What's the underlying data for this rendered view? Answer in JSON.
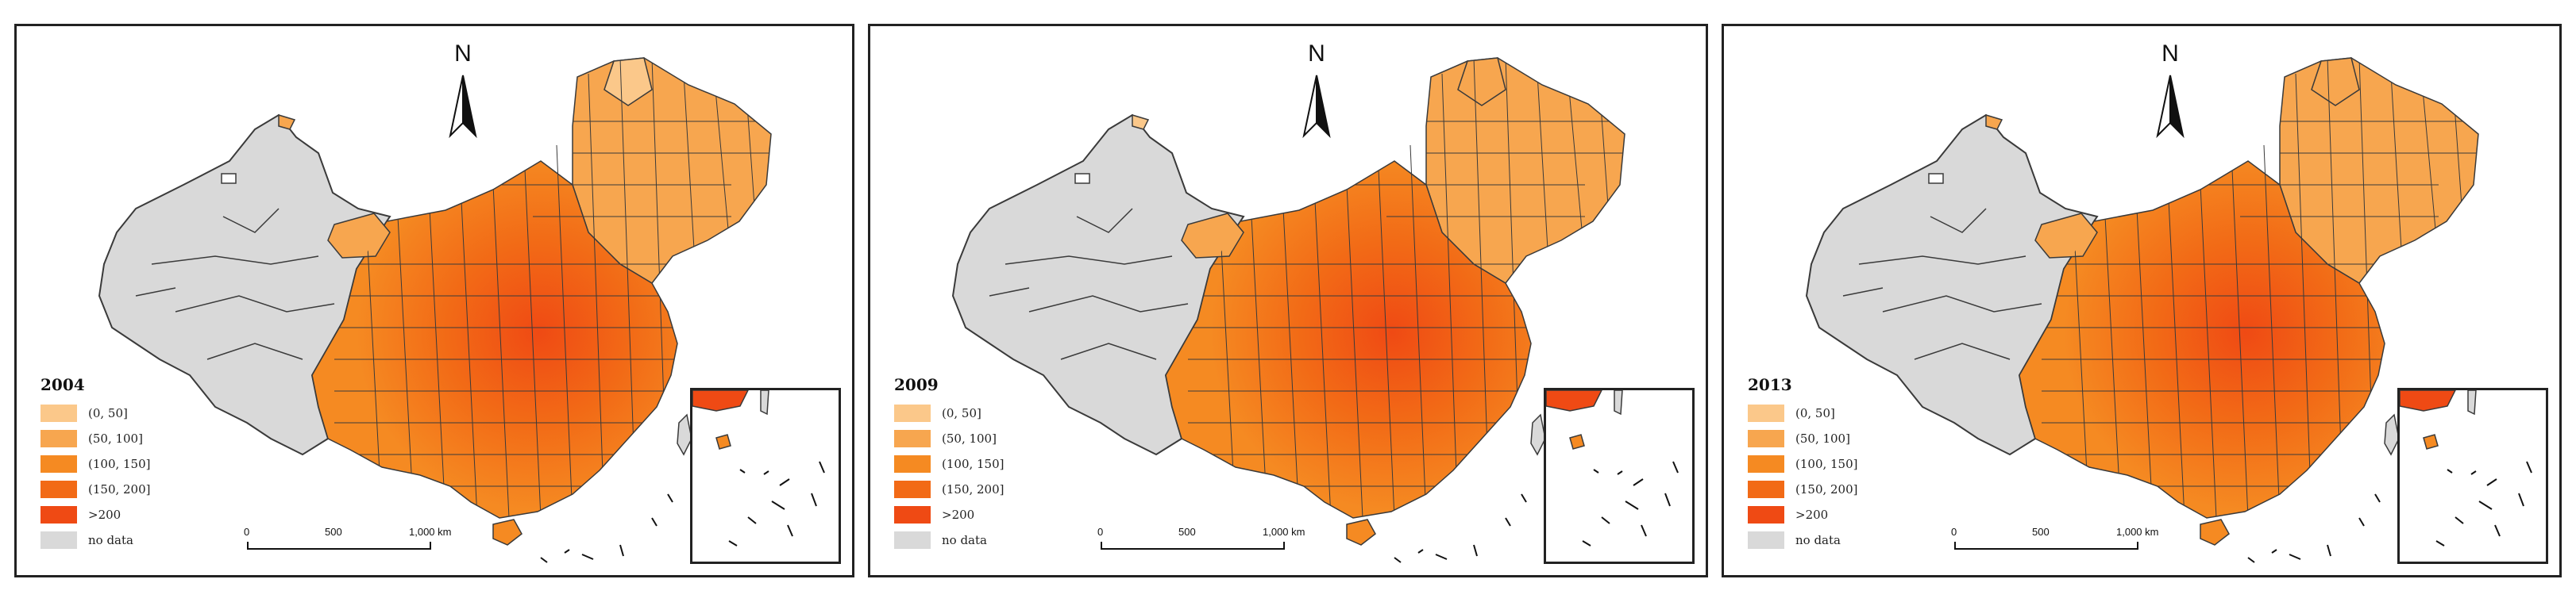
{
  "panels": [
    {
      "year": "2004"
    },
    {
      "year": "2009"
    },
    {
      "year": "2013"
    }
  ],
  "north_arrow": {
    "label": "N"
  },
  "legend": {
    "classes": [
      {
        "label": "(0, 50]",
        "color": "#fbc88a"
      },
      {
        "label": "(50, 100]",
        "color": "#f7a64f"
      },
      {
        "label": "(100, 150]",
        "color": "#f58a22"
      },
      {
        "label": "(150, 200]",
        "color": "#f26a16"
      },
      {
        "label": ">200",
        "color": "#ef4a14"
      },
      {
        "label": "no data",
        "color": "#d9d9d9"
      }
    ]
  },
  "scale_bar": {
    "labels": [
      "0",
      "500",
      "1,000 km"
    ]
  },
  "colors": {
    "boundary": "#3a3a3a",
    "frame": "#222222",
    "no_data": "#d9d9d9"
  }
}
